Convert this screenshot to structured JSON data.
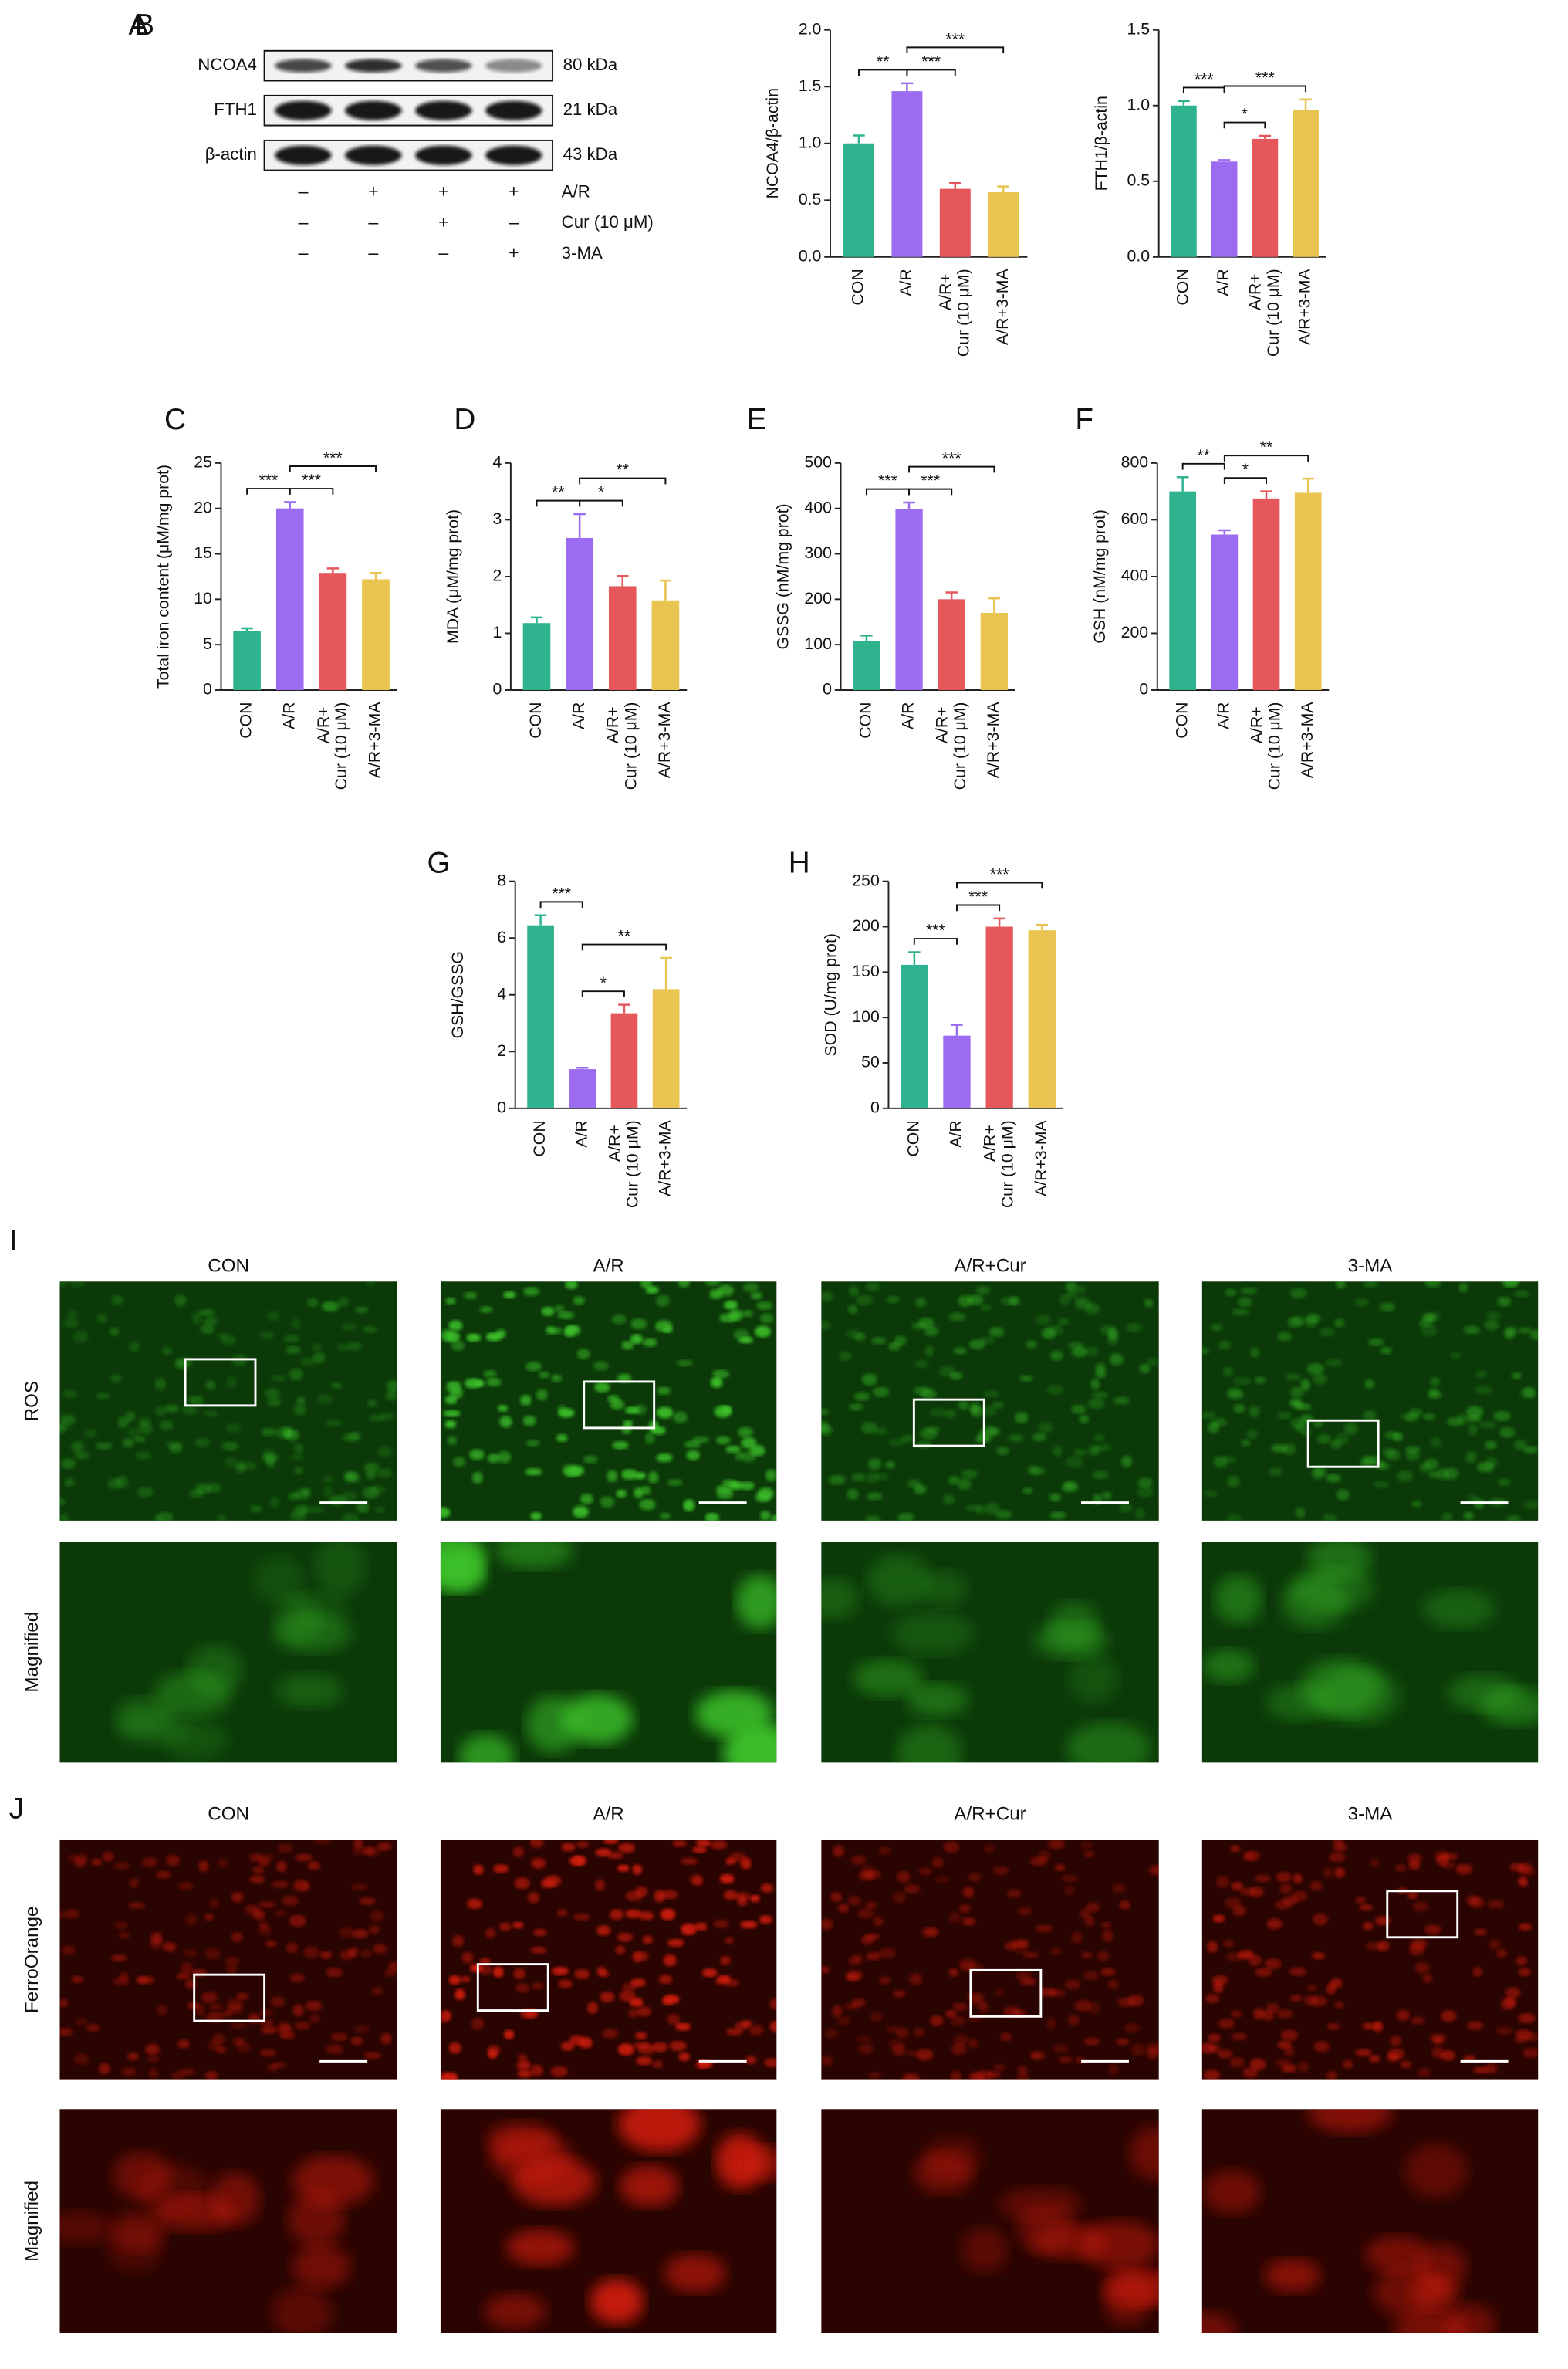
{
  "blot": {
    "panel": "A",
    "bands": [
      {
        "name": "NCOA4",
        "size": "80 kDa"
      },
      {
        "name": "FTH1",
        "size": "21 kDa"
      },
      {
        "name": "β-actin",
        "size": "43 kDa"
      }
    ],
    "treatments": [
      {
        "name": "A/R",
        "marks": [
          "–",
          "+",
          "+",
          "+"
        ]
      },
      {
        "name": "Cur (10 μM)",
        "marks": [
          "–",
          "–",
          "+",
          "–"
        ]
      },
      {
        "name": "3-MA",
        "marks": [
          "–",
          "–",
          "–",
          "+"
        ]
      }
    ]
  },
  "chart_data": [
    {
      "type": "bar",
      "panel": "B",
      "ylabel": "NCOA4/β-actin",
      "categories": [
        "CON",
        "A/R",
        "A/R+\nCur (10 μM)",
        "A/R+3-MA"
      ],
      "colors": [
        "#2eb38e",
        "#9b6cf0",
        "#e5575b",
        "#e9c450"
      ],
      "values": [
        1.0,
        1.46,
        0.6,
        0.57
      ],
      "errors": [
        0.07,
        0.07,
        0.05,
        0.05
      ],
      "ylim": [
        0,
        2
      ],
      "yticks": [
        {
          "value": 0,
          "label": "0.0"
        },
        {
          "value": 0.5,
          "label": "0.5"
        },
        {
          "value": 1,
          "label": "1.0"
        },
        {
          "value": 1.5,
          "label": "1.5"
        },
        {
          "value": 2,
          "label": "2.0"
        }
      ],
      "significance": [
        {
          "from": 0,
          "to": 1,
          "label": "**"
        },
        {
          "from": 1,
          "to": 2,
          "label": "***"
        },
        {
          "from": 1,
          "to": 3,
          "label": "***"
        }
      ]
    },
    {
      "type": "bar",
      "ylabel": "FTH1/β-actin",
      "categories": [
        "CON",
        "A/R",
        "A/R+\nCur (10 μM)",
        "A/R+3-MA"
      ],
      "colors": [
        "#2eb38e",
        "#9b6cf0",
        "#e5575b",
        "#e9c450"
      ],
      "values": [
        1.0,
        0.63,
        0.78,
        0.97
      ],
      "errors": [
        0.03,
        0.01,
        0.02,
        0.07
      ],
      "ylim": [
        0,
        1.5
      ],
      "yticks": [
        {
          "value": 0,
          "label": "0.0"
        },
        {
          "value": 0.5,
          "label": "0.5"
        },
        {
          "value": 1,
          "label": "1.0"
        },
        {
          "value": 1.5,
          "label": "1.5"
        }
      ],
      "significance": [
        {
          "from": 0,
          "to": 1,
          "label": "***"
        },
        {
          "from": 1,
          "to": 2,
          "label": "*"
        },
        {
          "from": 1,
          "to": 3,
          "label": "***"
        }
      ]
    },
    {
      "type": "bar",
      "panel": "C",
      "ylabel": "Total iron content (μM/mg prot)",
      "categories": [
        "CON",
        "A/R",
        "A/R+\nCur (10 μM)",
        "A/R+3-MA"
      ],
      "colors": [
        "#2eb38e",
        "#9b6cf0",
        "#e5575b",
        "#e9c450"
      ],
      "values": [
        6.5,
        20,
        12.9,
        12.2
      ],
      "errors": [
        0.3,
        0.7,
        0.5,
        0.7
      ],
      "ylim": [
        0,
        25
      ],
      "yticks": [
        0,
        5,
        10,
        15,
        20,
        25
      ],
      "significance": [
        {
          "from": 0,
          "to": 1,
          "label": "***"
        },
        {
          "from": 1,
          "to": 2,
          "label": "***"
        },
        {
          "from": 1,
          "to": 3,
          "label": "***"
        }
      ]
    },
    {
      "type": "bar",
      "panel": "D",
      "ylabel": "MDA (μM/mg prot)",
      "categories": [
        "CON",
        "A/R",
        "A/R+\nCur (10 μM)",
        "A/R+3-MA"
      ],
      "colors": [
        "#2eb38e",
        "#9b6cf0",
        "#e5575b",
        "#e9c450"
      ],
      "values": [
        1.18,
        2.68,
        1.83,
        1.58
      ],
      "errors": [
        0.1,
        0.42,
        0.18,
        0.35
      ],
      "ylim": [
        0,
        4
      ],
      "yticks": [
        0,
        1,
        2,
        3,
        4
      ],
      "significance": [
        {
          "from": 0,
          "to": 1,
          "label": "**"
        },
        {
          "from": 1,
          "to": 2,
          "label": "*"
        },
        {
          "from": 1,
          "to": 3,
          "label": "**"
        }
      ]
    },
    {
      "type": "bar",
      "panel": "E",
      "ylabel": "GSSG (nM/mg prot)",
      "categories": [
        "CON",
        "A/R",
        "A/R+\nCur (10 μM)",
        "A/R+3-MA"
      ],
      "colors": [
        "#2eb38e",
        "#9b6cf0",
        "#e5575b",
        "#e9c450"
      ],
      "values": [
        108,
        398,
        200,
        170
      ],
      "errors": [
        12,
        15,
        15,
        32
      ],
      "ylim": [
        0,
        500
      ],
      "yticks": [
        0,
        100,
        200,
        300,
        400,
        500
      ],
      "significance": [
        {
          "from": 0,
          "to": 1,
          "label": "***"
        },
        {
          "from": 1,
          "to": 2,
          "label": "***"
        },
        {
          "from": 1,
          "to": 3,
          "label": "***"
        }
      ]
    },
    {
      "type": "bar",
      "panel": "F",
      "ylabel": "GSH (nM/mg prot)",
      "categories": [
        "CON",
        "A/R",
        "A/R+\nCur (10 μM)",
        "A/R+3-MA"
      ],
      "colors": [
        "#2eb38e",
        "#9b6cf0",
        "#e5575b",
        "#e9c450"
      ],
      "values": [
        700,
        548,
        675,
        695
      ],
      "errors": [
        50,
        15,
        25,
        50
      ],
      "ylim": [
        0,
        800
      ],
      "yticks": [
        0,
        200,
        400,
        600,
        800
      ],
      "significance": [
        {
          "from": 0,
          "to": 1,
          "label": "**"
        },
        {
          "from": 1,
          "to": 2,
          "label": "*"
        },
        {
          "from": 1,
          "to": 3,
          "label": "**"
        }
      ]
    },
    {
      "type": "bar",
      "panel": "G",
      "ylabel": "GSH/GSSG",
      "categories": [
        "CON",
        "A/R",
        "A/R+\nCur (10 μM)",
        "A/R+3-MA"
      ],
      "colors": [
        "#2eb38e",
        "#9b6cf0",
        "#e5575b",
        "#e9c450"
      ],
      "values": [
        6.45,
        1.38,
        3.35,
        4.2
      ],
      "errors": [
        0.35,
        0.05,
        0.3,
        1.1
      ],
      "ylim": [
        0,
        8
      ],
      "yticks": [
        0,
        2,
        4,
        6,
        8
      ],
      "significance": [
        {
          "from": 0,
          "to": 1,
          "label": "***"
        },
        {
          "from": 1,
          "to": 2,
          "label": "*"
        },
        {
          "from": 1,
          "to": 3,
          "label": "**"
        }
      ]
    },
    {
      "type": "bar",
      "panel": "H",
      "ylabel": "SOD (U/mg prot)",
      "categories": [
        "CON",
        "A/R",
        "A/R+\nCur (10 μM)",
        "A/R+3-MA"
      ],
      "colors": [
        "#2eb38e",
        "#9b6cf0",
        "#e5575b",
        "#e9c450"
      ],
      "values": [
        158,
        80,
        200,
        196
      ],
      "errors": [
        14,
        12,
        9,
        6
      ],
      "ylim": [
        0,
        250
      ],
      "yticks": [
        0,
        50,
        100,
        150,
        200,
        250
      ],
      "significance": [
        {
          "from": 0,
          "to": 1,
          "label": "***"
        },
        {
          "from": 1,
          "to": 2,
          "label": "***"
        },
        {
          "from": 1,
          "to": 3,
          "label": "***"
        }
      ]
    }
  ],
  "images": [
    {
      "panel": "I",
      "columns": [
        "CON",
        "A/R",
        "A/R+Cur",
        "3-MA"
      ],
      "rows": [
        "ROS",
        "Magnified"
      ]
    },
    {
      "panel": "J",
      "columns": [
        "CON",
        "A/R",
        "A/R+Cur",
        "3-MA"
      ],
      "rows": [
        "FerroOrange",
        "Magnified"
      ]
    }
  ]
}
